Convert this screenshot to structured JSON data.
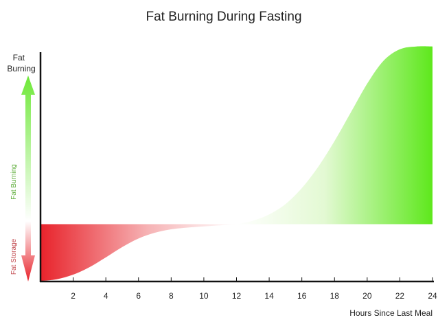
{
  "chart_data": {
    "type": "area",
    "title": "Fat Burning During Fasting",
    "xlabel": "Hours Since Last Meal",
    "ylabel": "Fat Burning",
    "xlim": [
      0,
      24
    ],
    "x_ticks": [
      2,
      4,
      6,
      8,
      10,
      12,
      14,
      16,
      18,
      20,
      22,
      24
    ],
    "ylim": [
      -1,
      3
    ],
    "y_ticks_shown": false,
    "grid": false,
    "legend": "none",
    "baseline": 0,
    "x": [
      0,
      1,
      2,
      3,
      4,
      5,
      6,
      7,
      8,
      9,
      10,
      11,
      12,
      13,
      14,
      15,
      16,
      17,
      18,
      19,
      20,
      21,
      22,
      23,
      24
    ],
    "values": [
      -0.99,
      -0.96,
      -0.88,
      -0.75,
      -0.58,
      -0.4,
      -0.25,
      -0.15,
      -0.09,
      -0.06,
      -0.04,
      -0.02,
      0.0,
      0.06,
      0.17,
      0.35,
      0.63,
      1.0,
      1.45,
      1.95,
      2.45,
      2.85,
      3.05,
      3.1,
      3.1
    ],
    "side_labels": {
      "upper": "Fat Burning",
      "lower": "Fat Storage"
    },
    "colors": {
      "positive": "#5ee81c",
      "negative": "#e8232b",
      "axis": "#111111"
    }
  }
}
